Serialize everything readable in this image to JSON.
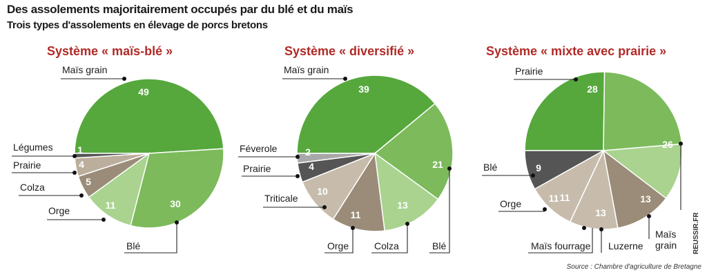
{
  "header": {
    "title": "Des assolements majoritairement occupés par du blé et du maïs",
    "subtitle": "Trois types d'assolements en élevage de porcs bretons"
  },
  "watermark": "REUSSIR.FR",
  "source": "Source : Chambre d'agriculture de Bretagne",
  "chart_data": [
    {
      "type": "pie",
      "title": "Système « maïs-blé »",
      "slices": [
        {
          "label": "Maïs grain",
          "value": 49,
          "color": "#56a83d"
        },
        {
          "label": "Blé",
          "value": 30,
          "color": "#7cba5b"
        },
        {
          "label": "Orge",
          "value": 11,
          "color": "#a9d38f"
        },
        {
          "label": "Colza",
          "value": 5,
          "color": "#9a8c78"
        },
        {
          "label": "Prairie",
          "value": 4,
          "color": "#bcae9c"
        },
        {
          "label": "Légumes",
          "value": 1,
          "color": "#555555"
        }
      ]
    },
    {
      "type": "pie",
      "title": "Système « diversifié »",
      "slices": [
        {
          "label": "Maïs grain",
          "value": 39,
          "color": "#56a83d"
        },
        {
          "label": "Blé",
          "value": 21,
          "color": "#7cba5b"
        },
        {
          "label": "Colza",
          "value": 13,
          "color": "#a9d38f"
        },
        {
          "label": "Orge",
          "value": 11,
          "color": "#9a8c78"
        },
        {
          "label": "Triticale",
          "value": 10,
          "color": "#c7bcac"
        },
        {
          "label": "Prairie",
          "value": 4,
          "color": "#555555"
        },
        {
          "label": "Féverole",
          "value": 2,
          "color": "#a8a8a8"
        }
      ]
    },
    {
      "type": "pie",
      "title": "Système « mixte avec prairie »",
      "slices": [
        {
          "label": "Prairie",
          "value": 28,
          "color": "#56a83d"
        },
        {
          "label": "",
          "value": 26,
          "color": "#7cba5b"
        },
        {
          "label": "Maïs grain",
          "value": 13,
          "color": "#a9d38f"
        },
        {
          "label": "Luzerne",
          "value": 13,
          "color": "#9a8c78"
        },
        {
          "label": "Maïs fourrage",
          "value": 11,
          "color": "#c7bcac"
        },
        {
          "label": "Orge",
          "value": 11,
          "color": "#c7bcac"
        },
        {
          "label": "Blé",
          "value": 9,
          "color": "#555555"
        }
      ]
    }
  ]
}
